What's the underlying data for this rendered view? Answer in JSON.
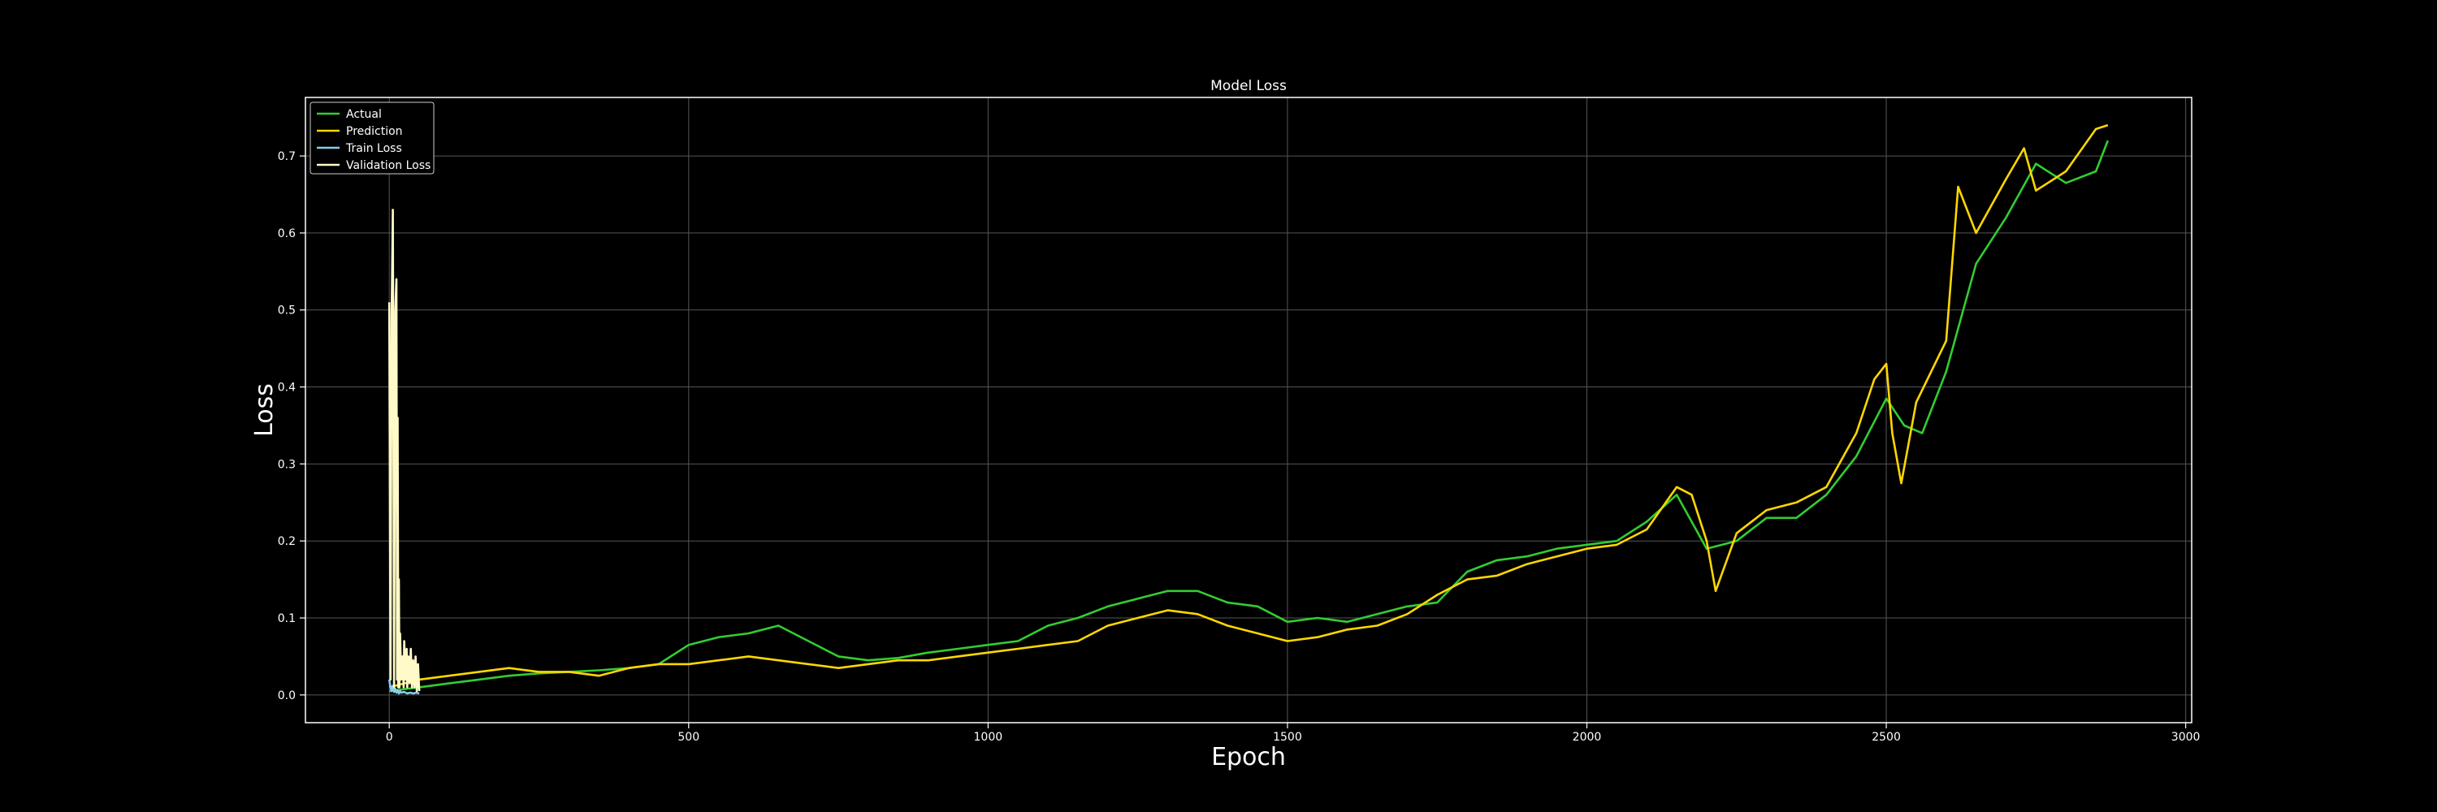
{
  "chart_data": {
    "type": "line",
    "title": "Model Loss",
    "xlabel": "Epoch",
    "ylabel": "Loss",
    "xlim": [
      -140,
      3010
    ],
    "ylim": [
      -0.036,
      0.776
    ],
    "xticks": [
      0,
      500,
      1000,
      1500,
      2000,
      2500,
      3000
    ],
    "yticks": [
      0.0,
      0.1,
      0.2,
      0.3,
      0.4,
      0.5,
      0.6,
      0.7
    ],
    "ytick_labels": [
      "0.0",
      "0.1",
      "0.2",
      "0.3",
      "0.4",
      "0.5",
      "0.6",
      "0.7"
    ],
    "grid": true,
    "legend_position": "top-left",
    "series": [
      {
        "name": "Actual",
        "color": "#32cd32",
        "x": [
          0,
          50,
          100,
          150,
          200,
          250,
          300,
          350,
          400,
          450,
          500,
          550,
          600,
          650,
          700,
          750,
          800,
          850,
          900,
          950,
          1000,
          1050,
          1100,
          1150,
          1200,
          1250,
          1300,
          1350,
          1400,
          1450,
          1500,
          1550,
          1600,
          1650,
          1700,
          1750,
          1800,
          1850,
          1900,
          1950,
          2000,
          2050,
          2100,
          2150,
          2200,
          2250,
          2300,
          2350,
          2400,
          2450,
          2500,
          2530,
          2560,
          2600,
          2650,
          2700,
          2750,
          2800,
          2850,
          2870
        ],
        "y": [
          0.005,
          0.01,
          0.015,
          0.02,
          0.025,
          0.028,
          0.03,
          0.032,
          0.035,
          0.04,
          0.065,
          0.075,
          0.08,
          0.09,
          0.07,
          0.05,
          0.045,
          0.048,
          0.055,
          0.06,
          0.065,
          0.07,
          0.09,
          0.1,
          0.115,
          0.125,
          0.135,
          0.135,
          0.12,
          0.115,
          0.095,
          0.1,
          0.095,
          0.105,
          0.115,
          0.12,
          0.16,
          0.175,
          0.18,
          0.19,
          0.195,
          0.2,
          0.225,
          0.26,
          0.19,
          0.2,
          0.23,
          0.23,
          0.26,
          0.31,
          0.385,
          0.35,
          0.34,
          0.42,
          0.56,
          0.62,
          0.69,
          0.665,
          0.68,
          0.72
        ]
      },
      {
        "name": "Prediction",
        "color": "#ffd700",
        "x": [
          0,
          50,
          100,
          150,
          200,
          250,
          300,
          350,
          400,
          450,
          500,
          550,
          600,
          650,
          700,
          750,
          800,
          850,
          900,
          950,
          1000,
          1050,
          1100,
          1150,
          1200,
          1250,
          1300,
          1350,
          1400,
          1450,
          1500,
          1550,
          1600,
          1650,
          1700,
          1750,
          1800,
          1850,
          1900,
          1950,
          2000,
          2050,
          2100,
          2150,
          2175,
          2200,
          2215,
          2250,
          2300,
          2350,
          2400,
          2450,
          2480,
          2500,
          2510,
          2525,
          2550,
          2600,
          2620,
          2650,
          2700,
          2730,
          2750,
          2800,
          2850,
          2870
        ],
        "y": [
          0.01,
          0.02,
          0.025,
          0.03,
          0.035,
          0.03,
          0.03,
          0.025,
          0.035,
          0.04,
          0.04,
          0.045,
          0.05,
          0.045,
          0.04,
          0.035,
          0.04,
          0.045,
          0.045,
          0.05,
          0.055,
          0.06,
          0.065,
          0.07,
          0.09,
          0.1,
          0.11,
          0.105,
          0.09,
          0.08,
          0.07,
          0.075,
          0.085,
          0.09,
          0.105,
          0.13,
          0.15,
          0.155,
          0.17,
          0.18,
          0.19,
          0.195,
          0.215,
          0.27,
          0.26,
          0.2,
          0.135,
          0.21,
          0.24,
          0.25,
          0.27,
          0.34,
          0.41,
          0.43,
          0.34,
          0.275,
          0.38,
          0.46,
          0.66,
          0.6,
          0.67,
          0.71,
          0.655,
          0.68,
          0.735,
          0.74
        ]
      },
      {
        "name": "Train Loss",
        "color": "#87ceeb",
        "x": [
          0,
          2,
          4,
          6,
          8,
          10,
          12,
          14,
          16,
          18,
          20,
          25,
          30,
          35,
          40,
          45,
          50
        ],
        "y": [
          0.02,
          0.01,
          0.005,
          0.012,
          0.004,
          0.008,
          0.003,
          0.006,
          0.002,
          0.005,
          0.003,
          0.004,
          0.002,
          0.003,
          0.002,
          0.003,
          0.002
        ]
      },
      {
        "name": "Validation Loss",
        "color": "#fffac8",
        "x": [
          0,
          2,
          4,
          6,
          8,
          10,
          12,
          13,
          14,
          15,
          16,
          17,
          18,
          20,
          22,
          24,
          25,
          27,
          29,
          30,
          32,
          34,
          36,
          38,
          40,
          42,
          44,
          46,
          48,
          50
        ],
        "y": [
          0.51,
          0.02,
          0.49,
          0.63,
          0.01,
          0.5,
          0.54,
          0.02,
          0.36,
          0.01,
          0.15,
          0.01,
          0.08,
          0.02,
          0.05,
          0.01,
          0.07,
          0.02,
          0.06,
          0.01,
          0.05,
          0.015,
          0.06,
          0.01,
          0.045,
          0.01,
          0.05,
          0.005,
          0.04,
          0.005
        ]
      }
    ]
  }
}
